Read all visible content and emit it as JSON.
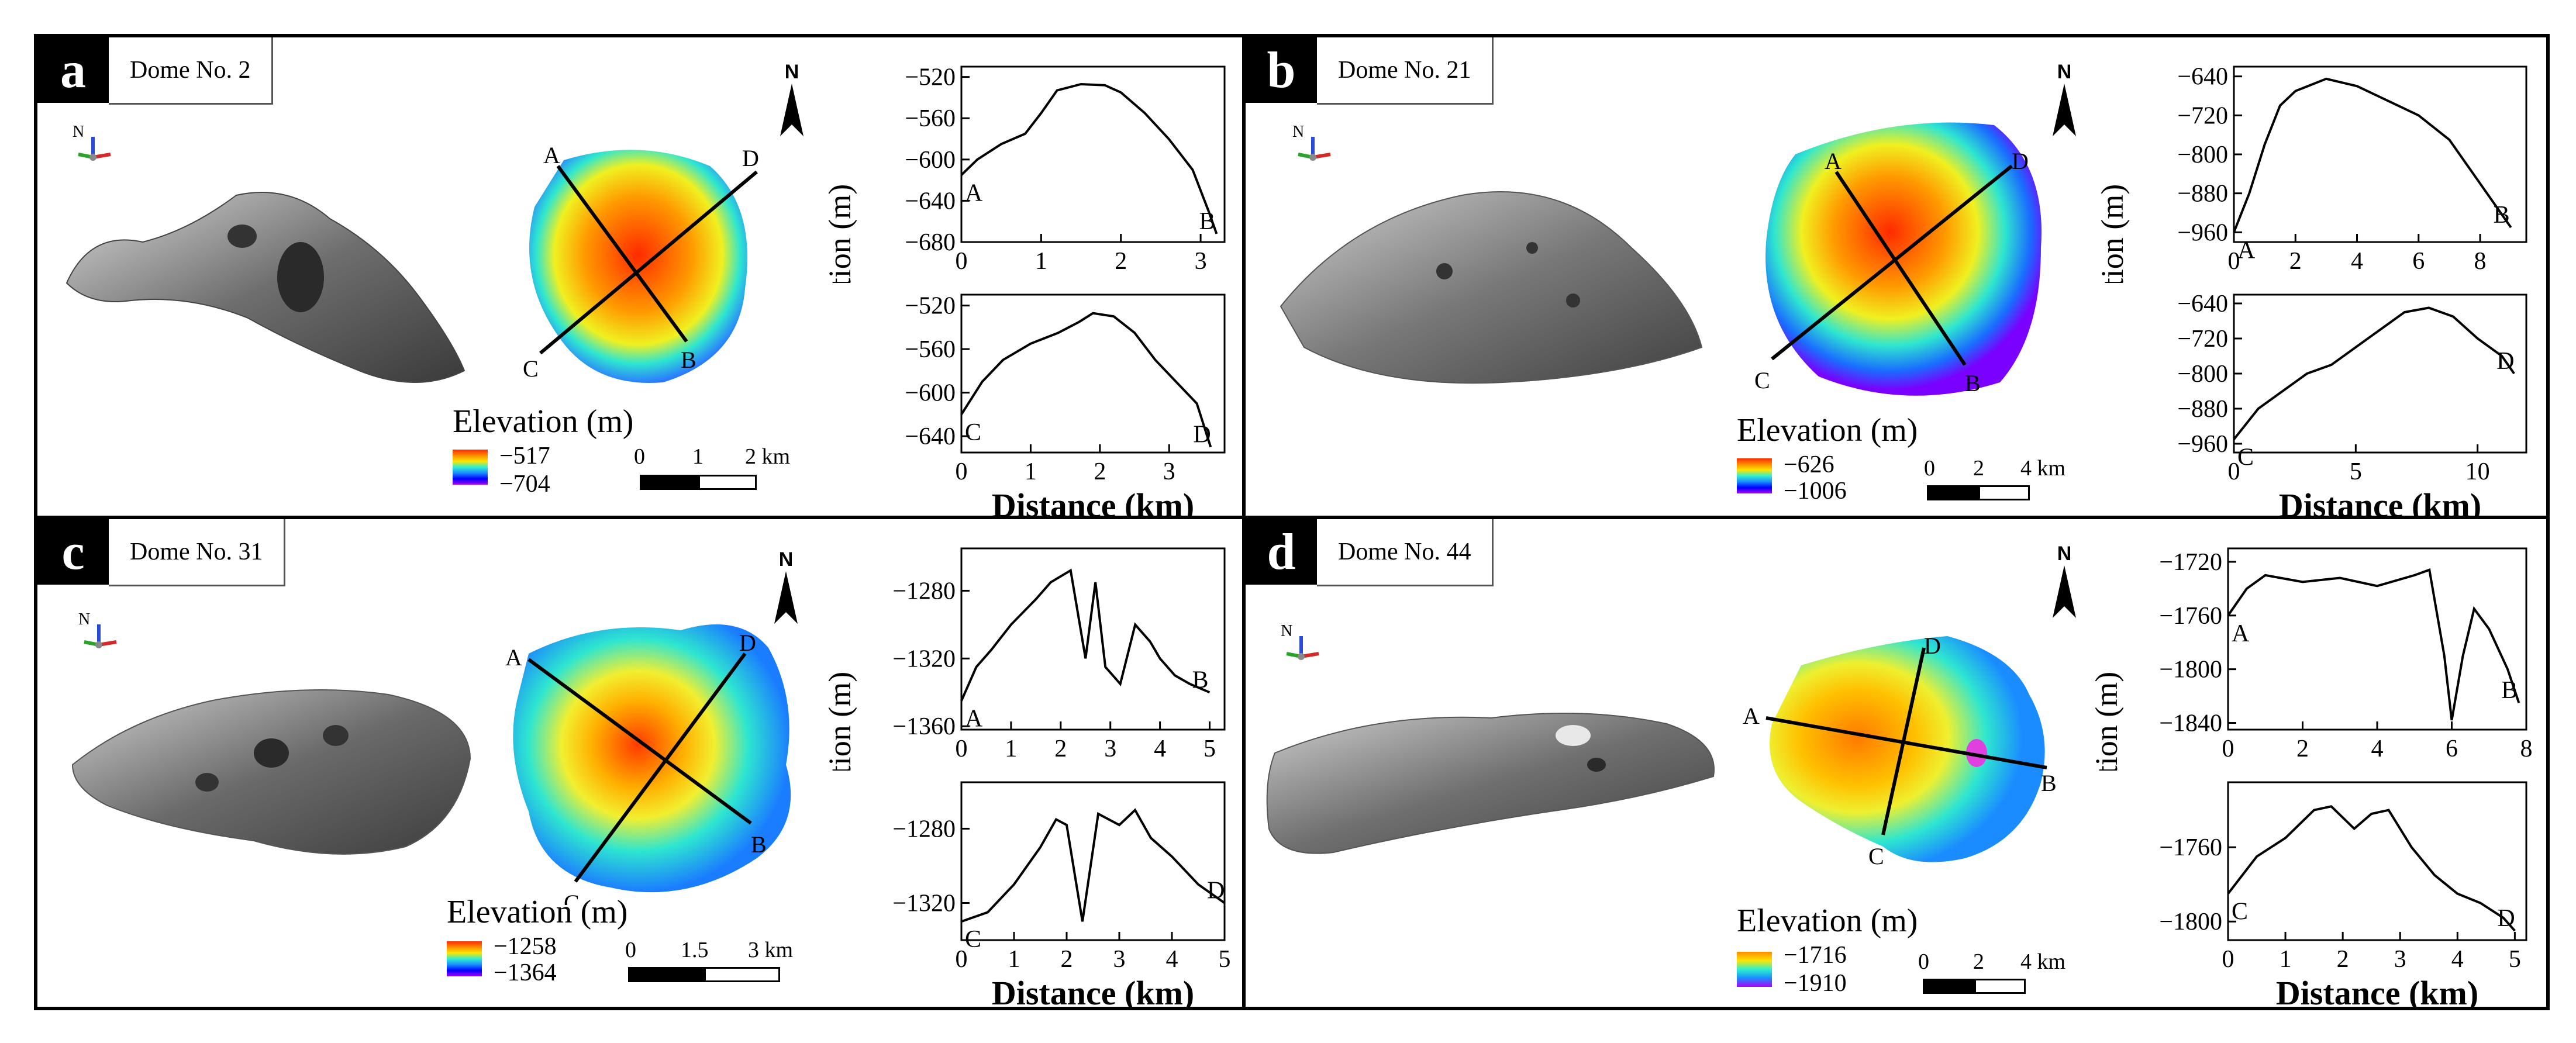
{
  "domain": "Paper",
  "panels": [
    {
      "letter": "a",
      "title": "Dome No. 2",
      "legend_title": "Elevation (m)",
      "elev_max": "−517",
      "elev_min": "−704",
      "scale_labels": [
        "0",
        "1",
        "2 km"
      ],
      "north": "N",
      "axes_label": "N"
    },
    {
      "letter": "b",
      "title": "Dome No. 21",
      "legend_title": "Elevation (m)",
      "elev_max": "−626",
      "elev_min": "−1006",
      "scale_labels": [
        "0",
        "2",
        "4 km"
      ],
      "north": "N",
      "axes_label": "N"
    },
    {
      "letter": "c",
      "title": "Dome No. 31",
      "legend_title": "Elevation (m)",
      "elev_max": "−1258",
      "elev_min": "−1364",
      "scale_labels": [
        "0",
        "1.5",
        "3 km"
      ],
      "north": "N",
      "axes_label": "N"
    },
    {
      "letter": "d",
      "title": "Dome No. 44",
      "legend_title": "Elevation (m)",
      "elev_max": "−1716",
      "elev_min": "−1910",
      "scale_labels": [
        "0",
        "2",
        "4 km"
      ],
      "north": "N",
      "axes_label": "N"
    }
  ],
  "chart_data": [
    {
      "type": "line",
      "panel": "a",
      "profile": "A-B",
      "ylabel": "Elevation (m)",
      "xlabel": "",
      "x": [
        0,
        0.2,
        0.5,
        0.8,
        1.0,
        1.2,
        1.5,
        1.8,
        2.0,
        2.3,
        2.6,
        2.9,
        3.1,
        3.2
      ],
      "y": [
        -615,
        -600,
        -585,
        -575,
        -555,
        -533,
        -527,
        -528,
        -535,
        -555,
        -580,
        -610,
        -650,
        -672
      ],
      "xlim": [
        0,
        3.3
      ],
      "ylim": [
        -680,
        -510
      ],
      "xticks": [
        "0",
        "1",
        "2",
        "3"
      ],
      "yticks": [
        "−520",
        "−560",
        "−600",
        "−640",
        "−680"
      ],
      "start_label": "A",
      "end_label": "B"
    },
    {
      "type": "line",
      "panel": "a",
      "profile": "C-D",
      "ylabel": "",
      "xlabel": "Distance (km)",
      "x": [
        0,
        0.3,
        0.6,
        1.0,
        1.4,
        1.7,
        1.9,
        2.2,
        2.5,
        2.8,
        3.1,
        3.4,
        3.6
      ],
      "y": [
        -620,
        -590,
        -570,
        -555,
        -545,
        -535,
        -527,
        -530,
        -545,
        -570,
        -590,
        -610,
        -650
      ],
      "xlim": [
        0,
        3.8
      ],
      "ylim": [
        -655,
        -510
      ],
      "xticks": [
        "0",
        "1",
        "2",
        "3"
      ],
      "yticks": [
        "−520",
        "−560",
        "−600",
        "−640"
      ],
      "start_label": "C",
      "end_label": "D"
    },
    {
      "type": "line",
      "panel": "b",
      "profile": "A-B",
      "ylabel": "Elevation (m)",
      "xlabel": "",
      "x": [
        0,
        0.5,
        1,
        1.5,
        2,
        3,
        4,
        5,
        6,
        7,
        8,
        9
      ],
      "y": [
        -960,
        -880,
        -780,
        -700,
        -670,
        -645,
        -660,
        -690,
        -720,
        -770,
        -860,
        -950
      ],
      "xlim": [
        0,
        9.5
      ],
      "ylim": [
        -980,
        -620
      ],
      "xticks": [
        "0",
        "2",
        "4",
        "6",
        "8"
      ],
      "yticks": [
        "−640",
        "−720",
        "−800",
        "−880",
        "−960"
      ],
      "start_label": "A",
      "end_label": "B"
    },
    {
      "type": "line",
      "panel": "b",
      "profile": "C-D",
      "ylabel": "",
      "xlabel": "Distance (km)",
      "x": [
        0,
        1,
        2,
        3,
        4,
        5,
        6,
        7,
        8,
        9,
        10,
        11,
        11.5
      ],
      "y": [
        -950,
        -880,
        -840,
        -800,
        -780,
        -740,
        -700,
        -660,
        -650,
        -670,
        -720,
        -760,
        -800
      ],
      "xlim": [
        0,
        12
      ],
      "ylim": [
        -980,
        -620
      ],
      "xticks": [
        "0",
        "5",
        "10"
      ],
      "yticks": [
        "−640",
        "−720",
        "−800",
        "−880",
        "−960"
      ],
      "start_label": "C",
      "end_label": "D"
    },
    {
      "type": "line",
      "panel": "c",
      "profile": "A-B",
      "ylabel": "Elevation (m)",
      "xlabel": "",
      "x": [
        0,
        0.3,
        0.6,
        1.0,
        1.5,
        1.8,
        2.2,
        2.5,
        2.7,
        2.9,
        3.2,
        3.5,
        3.8,
        4.0,
        4.3,
        4.6,
        5.0
      ],
      "y": [
        -1345,
        -1325,
        -1315,
        -1300,
        -1285,
        -1275,
        -1268,
        -1320,
        -1275,
        -1325,
        -1335,
        -1300,
        -1310,
        -1320,
        -1330,
        -1335,
        -1340
      ],
      "xlim": [
        0,
        5.3
      ],
      "ylim": [
        -1362,
        -1255
      ],
      "xticks": [
        "0",
        "1",
        "2",
        "3",
        "4",
        "5"
      ],
      "yticks": [
        "−1280",
        "−1320",
        "−1360"
      ],
      "start_label": "A",
      "end_label": "B"
    },
    {
      "type": "line",
      "panel": "c",
      "profile": "C-D",
      "ylabel": "",
      "xlabel": "Distance (km)",
      "x": [
        0,
        0.5,
        1.0,
        1.5,
        1.8,
        2.0,
        2.3,
        2.6,
        3.0,
        3.3,
        3.6,
        4.0,
        4.5,
        5.0
      ],
      "y": [
        -1330,
        -1325,
        -1310,
        -1290,
        -1275,
        -1278,
        -1330,
        -1272,
        -1278,
        -1270,
        -1285,
        -1295,
        -1310,
        -1320
      ],
      "xlim": [
        0,
        5.0
      ],
      "ylim": [
        -1340,
        -1255
      ],
      "xticks": [
        "0",
        "1",
        "2",
        "3",
        "4",
        "5"
      ],
      "yticks": [
        "−1280",
        "−1320"
      ],
      "start_label": "C",
      "end_label": "D"
    },
    {
      "type": "line",
      "panel": "d",
      "profile": "A-B",
      "ylabel": "Elevation (m)",
      "xlabel": "",
      "x": [
        0,
        0.5,
        1,
        2,
        3,
        4,
        5,
        5.4,
        5.8,
        6.0,
        6.3,
        6.6,
        7.0,
        7.5,
        7.8
      ],
      "y": [
        -1760,
        -1740,
        -1730,
        -1735,
        -1732,
        -1738,
        -1730,
        -1726,
        -1790,
        -1838,
        -1790,
        -1755,
        -1770,
        -1800,
        -1825
      ],
      "xlim": [
        0,
        8
      ],
      "ylim": [
        -1845,
        -1710
      ],
      "xticks": [
        "0",
        "2",
        "4",
        "6",
        "8"
      ],
      "yticks": [
        "−1720",
        "−1760",
        "−1800",
        "−1840"
      ],
      "start_label": "A",
      "end_label": "B"
    },
    {
      "type": "line",
      "panel": "d",
      "profile": "C-D",
      "ylabel": "",
      "xlabel": "Distance (km)",
      "x": [
        0,
        0.5,
        1.0,
        1.5,
        1.8,
        2.2,
        2.5,
        2.8,
        3.2,
        3.6,
        4.0,
        4.4,
        4.8,
        5.0
      ],
      "y": [
        -1785,
        -1765,
        -1755,
        -1740,
        -1738,
        -1750,
        -1742,
        -1740,
        -1760,
        -1775,
        -1785,
        -1790,
        -1798,
        -1805
      ],
      "xlim": [
        0,
        5.2
      ],
      "ylim": [
        -1810,
        -1725
      ],
      "xticks": [
        "0",
        "1",
        "2",
        "3",
        "4",
        "5"
      ],
      "yticks": [
        "−1760",
        "−1800"
      ],
      "start_label": "C",
      "end_label": "D"
    }
  ]
}
